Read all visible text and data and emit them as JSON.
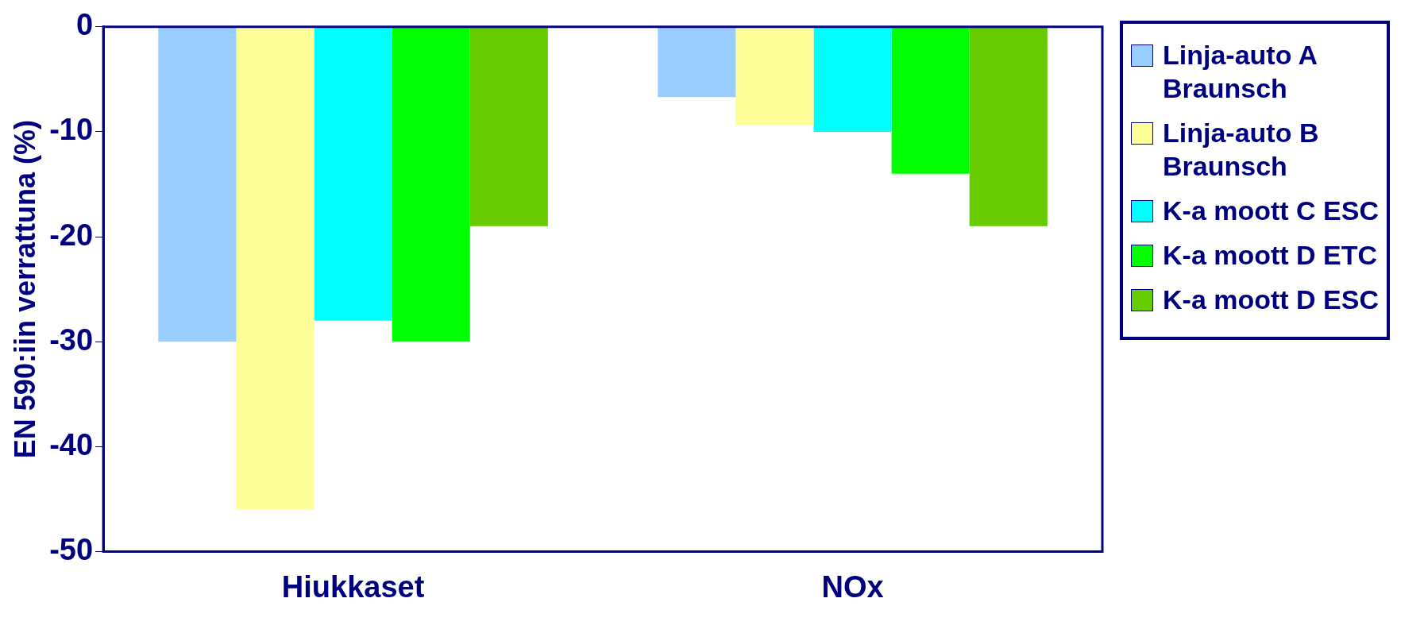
{
  "chart_data": {
    "type": "bar",
    "ylabel": "EN 590:iin verrattuna (%)",
    "categories": [
      "Hiukkaset",
      "NOx"
    ],
    "series": [
      {
        "name": "Linja-auto A Braunsch",
        "color": "#99ccff",
        "values": [
          -30,
          -6.7
        ]
      },
      {
        "name": "Linja-auto B Braunsch",
        "color": "#ffff99",
        "values": [
          -46,
          -9.4
        ]
      },
      {
        "name": "K-a moott C ESC",
        "color": "#00ffff",
        "values": [
          -28,
          -10
        ]
      },
      {
        "name": "K-a moott D ETC",
        "color": "#00ff00",
        "values": [
          -30,
          -14
        ]
      },
      {
        "name": "K-a moott D ESC",
        "color": "#66cc00",
        "values": [
          -19,
          -19
        ]
      }
    ],
    "ylim": [
      -50,
      0
    ],
    "yticks": [
      -50,
      -40,
      -30,
      -20,
      -10,
      0
    ],
    "grid": false,
    "legend": "right"
  }
}
